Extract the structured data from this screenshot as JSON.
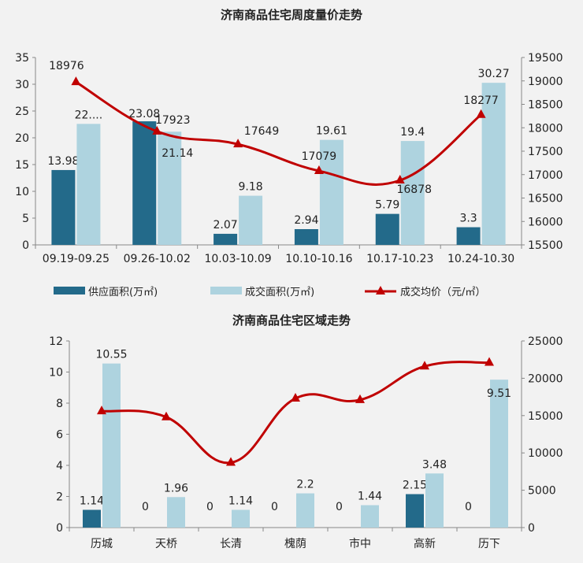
{
  "chart_data": [
    {
      "type": "bar+line",
      "title": "济南商品住宅周度量价走势",
      "categories": [
        "09.19-09.25",
        "09.26-10.02",
        "10.03-10.09",
        "10.10-10.16",
        "10.17-10.23",
        "10.24-10.30"
      ],
      "series": [
        {
          "name": "供应面积(万㎡)",
          "type": "bar",
          "axis": "left",
          "color": "#236a8a",
          "values": [
            13.98,
            23.08,
            2.07,
            2.94,
            5.79,
            3.3
          ],
          "labels": [
            "13.98",
            "23.08",
            "2.07",
            "2.94",
            "5.79",
            "3.3"
          ]
        },
        {
          "name": "成交面积(万㎡)",
          "type": "bar",
          "axis": "left",
          "color": "#aed3df",
          "values": [
            22.6,
            21.14,
            9.18,
            19.61,
            19.4,
            30.27
          ],
          "labels": [
            "22....",
            "21.14",
            "9.18",
            "19.61",
            "19.4",
            "30.27"
          ]
        },
        {
          "name": "成交均价（元/㎡）",
          "type": "line",
          "axis": "right",
          "color": "#c00000",
          "values": [
            18976,
            17923,
            17649,
            17079,
            16878,
            18277
          ],
          "labels": [
            "18976",
            "17923",
            "17649",
            "17079",
            "16878",
            "18277"
          ]
        }
      ],
      "ylim": [
        0,
        35
      ],
      "yticks": [
        0,
        5,
        10,
        15,
        20,
        25,
        30,
        35
      ],
      "y2lim": [
        15500,
        19500
      ],
      "y2ticks": [
        15500,
        16000,
        16500,
        17000,
        17500,
        18000,
        18500,
        19000,
        19500
      ],
      "legend": "bottom"
    },
    {
      "type": "bar+line",
      "title": "济南商品住宅区域走势",
      "categories": [
        "历城",
        "天桥",
        "长清",
        "槐荫",
        "市中",
        "高新",
        "历下"
      ],
      "series": [
        {
          "name": "供应面积(万㎡)",
          "type": "bar",
          "axis": "left",
          "color": "#236a8a",
          "values": [
            1.14,
            0,
            0,
            0,
            0,
            2.15,
            0
          ],
          "labels": [
            "1.14",
            "0",
            "0",
            "0",
            "0",
            "2.15",
            "0"
          ]
        },
        {
          "name": "成交面积(万㎡)",
          "type": "bar",
          "axis": "left",
          "color": "#aed3df",
          "values": [
            10.55,
            1.96,
            1.14,
            2.2,
            1.44,
            3.48,
            9.51
          ],
          "labels": [
            "10.55",
            "1.96",
            "1.14",
            "2.2",
            "1.44",
            "3.48",
            "9.51"
          ]
        },
        {
          "name": "成交均价（元/㎡）",
          "type": "line",
          "axis": "right",
          "color": "#c00000",
          "values": [
            15600,
            14800,
            8700,
            17300,
            17100,
            21600,
            22100
          ]
        }
      ],
      "ylim": [
        0,
        12
      ],
      "yticks": [
        0,
        2,
        4,
        6,
        8,
        10,
        12
      ],
      "y2lim": [
        0,
        25000
      ],
      "y2ticks": [
        0,
        5000,
        10000,
        15000,
        20000,
        25000
      ],
      "legend": "none"
    }
  ]
}
